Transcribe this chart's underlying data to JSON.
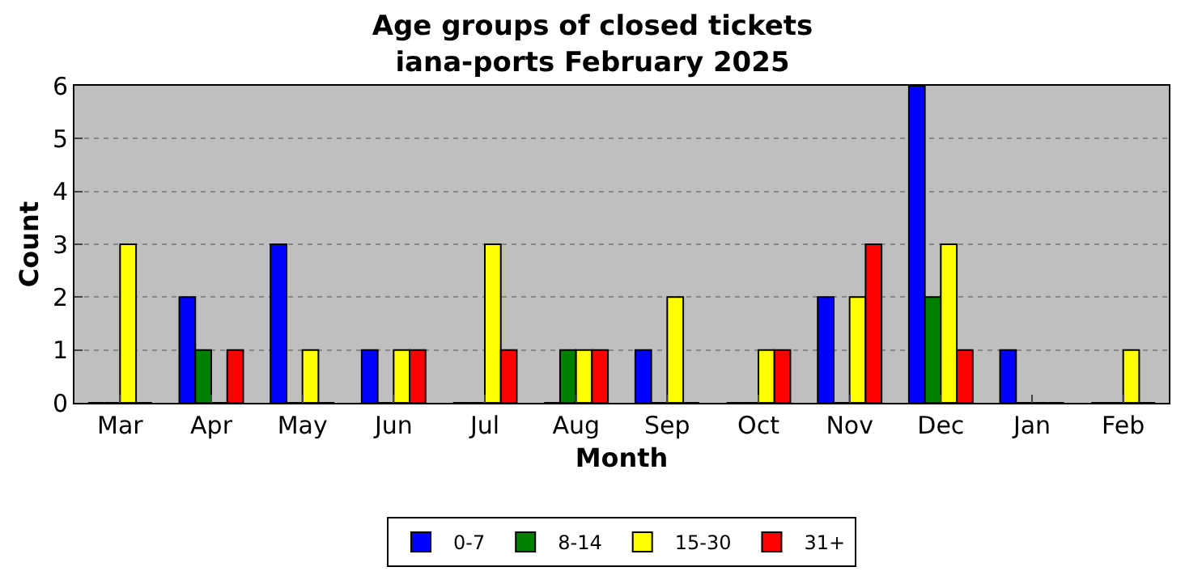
{
  "chart_data": {
    "type": "bar",
    "title": "Age groups of closed tickets\niana-ports February 2025",
    "xlabel": "Month",
    "ylabel": "Count",
    "categories": [
      "Mar",
      "Apr",
      "May",
      "Jun",
      "Jul",
      "Aug",
      "Sep",
      "Oct",
      "Nov",
      "Dec",
      "Jan",
      "Feb"
    ],
    "series": [
      {
        "name": "0-7",
        "color": "#0000ff",
        "values": [
          0,
          2,
          3,
          1,
          0,
          0,
          1,
          0,
          2,
          6,
          1,
          0
        ]
      },
      {
        "name": "8-14",
        "color": "#008000",
        "values": [
          0,
          1,
          0,
          0,
          0,
          1,
          0,
          0,
          0,
          2,
          0,
          0
        ]
      },
      {
        "name": "15-30",
        "color": "#ffff00",
        "values": [
          3,
          0,
          1,
          1,
          3,
          1,
          2,
          1,
          2,
          3,
          0,
          1
        ]
      },
      {
        "name": "31+",
        "color": "#ff0000",
        "values": [
          0,
          1,
          0,
          1,
          1,
          1,
          0,
          1,
          3,
          1,
          0,
          0
        ]
      }
    ],
    "ylim": [
      0,
      6
    ],
    "yticks": [
      0,
      1,
      2,
      3,
      4,
      5,
      6
    ],
    "grid": "y",
    "legend": "bottom"
  }
}
